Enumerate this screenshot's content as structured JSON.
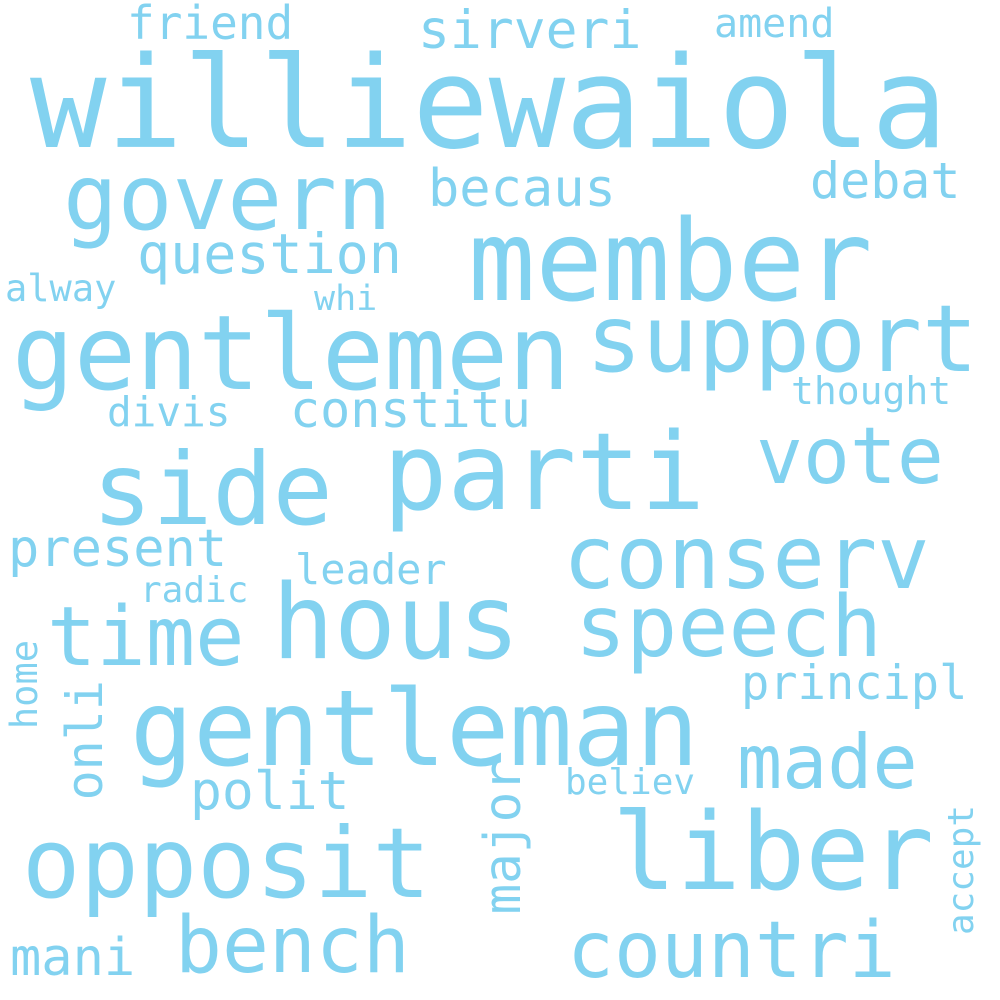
{
  "color": "#82d2f0",
  "words": {
    "williewaiola": "williewaiola",
    "member": "member",
    "gentlemen": "gentlemen",
    "parti": "parti",
    "hous": "hous",
    "gentleman": "gentleman",
    "side": "side",
    "opposit": "opposit",
    "support": "support",
    "govern": "govern",
    "conserv": "conserv",
    "liber": "liber",
    "speech": "speech",
    "vote": "vote",
    "time": "time",
    "bench": "bench",
    "countri": "countri",
    "made": "made",
    "question": "question",
    "becaus": "becaus",
    "constitu": "constitu",
    "sirveri": "sirveri",
    "present": "present",
    "debat": "debat",
    "polit": "polit",
    "friend": "friend",
    "principl": "principl",
    "major": "major",
    "onli": "onli",
    "amend": "amend",
    "divis": "divis",
    "leader": "leader",
    "thought": "thought",
    "alway": "alway",
    "whi": "whi",
    "radic": "radic",
    "believ": "believ",
    "mani": "mani",
    "home": "home",
    "accept": "accept"
  }
}
